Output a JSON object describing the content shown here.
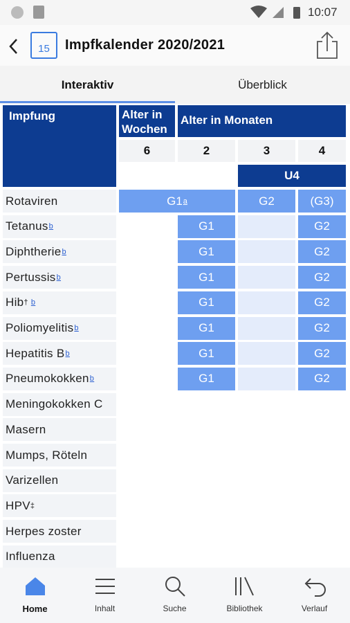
{
  "status_bar": {
    "time": "10:07"
  },
  "header": {
    "icon_day": "15",
    "title": "Impfkalender 2020/2021"
  },
  "tabs": [
    "Interaktiv",
    "Überblick"
  ],
  "table": {
    "first_header": "Impfung",
    "group_headers": [
      "Alter in Wochen",
      "Alter in Monaten"
    ],
    "ages": [
      "6",
      "2",
      "3",
      "4"
    ],
    "exam": "U4",
    "rows": [
      {
        "name": "Rotaviren",
        "cells": [
          {
            "text": "G1",
            "note": "a",
            "span": 2
          },
          {
            "text": "G2"
          },
          {
            "text": "(G3)"
          }
        ]
      },
      {
        "name": "Tetanus",
        "note": "b",
        "cells": [
          null,
          {
            "text": "G1"
          },
          null,
          {
            "text": "G2"
          }
        ]
      },
      {
        "name": "Diphtherie",
        "note": "b",
        "cells": [
          null,
          {
            "text": "G1"
          },
          null,
          {
            "text": "G2"
          }
        ]
      },
      {
        "name": "Pertussis",
        "note": "b",
        "cells": [
          null,
          {
            "text": "G1"
          },
          null,
          {
            "text": "G2"
          }
        ]
      },
      {
        "name": "Hib",
        "sup": "†",
        "note": "b",
        "cells": [
          null,
          {
            "text": "G1"
          },
          null,
          {
            "text": "G2"
          }
        ]
      },
      {
        "name": "Poliomyelitis",
        "note": "b",
        "cells": [
          null,
          {
            "text": "G1"
          },
          null,
          {
            "text": "G2"
          }
        ]
      },
      {
        "name": "Hepatitis B",
        "note": "b",
        "cells": [
          null,
          {
            "text": "G1"
          },
          null,
          {
            "text": "G2"
          }
        ]
      },
      {
        "name": "Pneumokokken",
        "note": "b",
        "cells": [
          null,
          {
            "text": "G1"
          },
          null,
          {
            "text": "G2"
          }
        ]
      },
      {
        "name": "Meningokokken C"
      },
      {
        "name": "Masern"
      },
      {
        "name": "Mumps, Röteln"
      },
      {
        "name": "Varizellen"
      },
      {
        "name": "HPV",
        "sup": "‡"
      },
      {
        "name": "Herpes zoster"
      },
      {
        "name": "Influenza"
      }
    ]
  },
  "nav": [
    "Home",
    "Inhalt",
    "Suche",
    "Bibliothek",
    "Verlauf"
  ]
}
